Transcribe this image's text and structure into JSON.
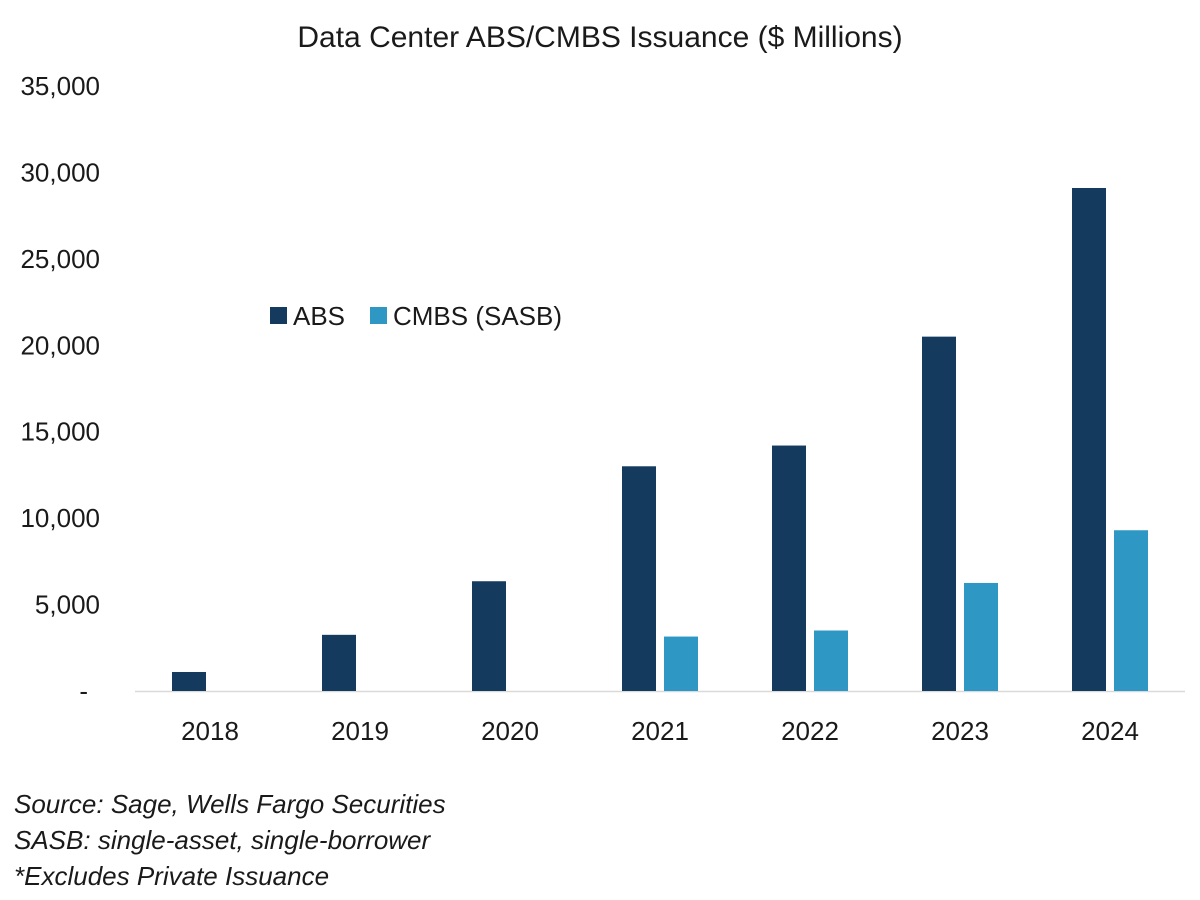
{
  "chart_data": {
    "type": "bar",
    "title": "Data Center ABS/CMBS Issuance ($ Millions)",
    "xlabel": "",
    "ylabel": "",
    "categories": [
      "2018",
      "2019",
      "2020",
      "2021",
      "2022",
      "2023",
      "2024"
    ],
    "series": [
      {
        "name": "ABS",
        "color": "#143a5e",
        "values": [
          1100,
          3250,
          6350,
          13000,
          14200,
          20500,
          29100
        ]
      },
      {
        "name": "CMBS (SASB)",
        "color": "#2e97c4",
        "values": [
          null,
          null,
          null,
          3150,
          3500,
          6250,
          9300
        ]
      }
    ],
    "ylim": [
      0,
      35000
    ],
    "yticks": [
      0,
      5000,
      10000,
      15000,
      20000,
      25000,
      30000,
      35000
    ],
    "ytick_labels": [
      "-",
      "5,000",
      "10,000",
      "15,000",
      "20,000",
      "25,000",
      "30,000",
      "35,000"
    ],
    "grid": false,
    "legend_position": "upper-left-inside"
  },
  "notes": {
    "source": "Source: Sage, Wells Fargo Securities",
    "sasb": "SASB: single-asset, single-borrower",
    "excludes": "*Excludes Private Issuance"
  }
}
